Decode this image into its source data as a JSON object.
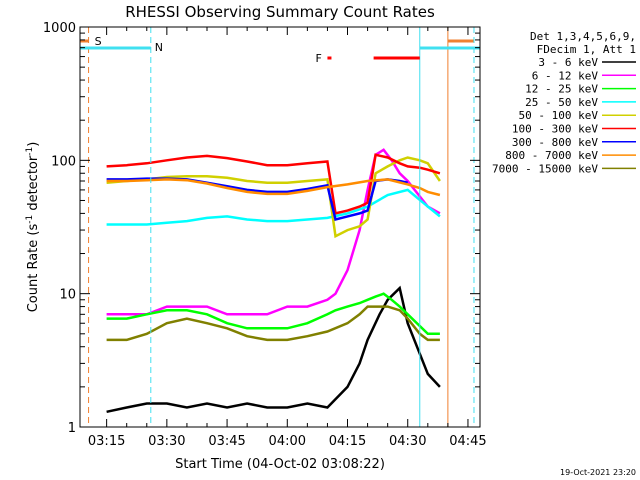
{
  "chart_data": {
    "type": "line",
    "title": "RHESSI Observing Summary Count Rates",
    "xlabel": "Start Time (04-Oct-02 03:08:22)",
    "ylabel": "Count Rate (s⁻¹ detector⁻¹)",
    "ylabel_main": "Count Rate (s",
    "ylabel_exp1": "-1",
    "ylabel_mid": " detector",
    "ylabel_exp2": "-1",
    "ylabel_end": ")",
    "xlim": [
      "03:08:22",
      "04:48:00"
    ],
    "ylim": [
      1,
      1000
    ],
    "yscale": "log",
    "x_ticks": [
      "03:15",
      "03:30",
      "03:45",
      "04:00",
      "04:15",
      "04:30",
      "04:45"
    ],
    "y_ticks": [
      "1",
      "10",
      "100",
      "1000"
    ],
    "legend": {
      "placement": "right",
      "header": [
        "Det 1,3,4,5,6,9,",
        "FDecim 1, Att 1"
      ]
    },
    "flags": [
      {
        "label": "S",
        "color": "#f08030"
      },
      {
        "label": "N",
        "color": "#40e0f0"
      },
      {
        "label": "F",
        "color": "#ff0000"
      }
    ],
    "series": [
      {
        "name": "3 - 6 keV",
        "color": "#000000",
        "x": [
          "03:15",
          "03:20",
          "03:25",
          "03:30",
          "03:35",
          "03:40",
          "03:45",
          "03:50",
          "03:55",
          "04:00",
          "04:05",
          "04:10",
          "04:15",
          "04:18",
          "04:20",
          "04:23",
          "04:25",
          "04:28",
          "04:30",
          "04:35",
          "04:38"
        ],
        "y": [
          1.3,
          1.4,
          1.5,
          1.5,
          1.4,
          1.5,
          1.4,
          1.5,
          1.4,
          1.4,
          1.5,
          1.4,
          2.0,
          3.0,
          4.5,
          7.0,
          9.0,
          11.0,
          6.0,
          2.5,
          2.0
        ]
      },
      {
        "name": "6 - 12 keV",
        "color": "#ff00ff",
        "x": [
          "03:15",
          "03:20",
          "03:25",
          "03:30",
          "03:35",
          "03:40",
          "03:45",
          "03:50",
          "03:55",
          "04:00",
          "04:05",
          "04:10",
          "04:12",
          "04:15",
          "04:18",
          "04:20",
          "04:22",
          "04:24",
          "04:26",
          "04:28",
          "04:30",
          "04:35",
          "04:38"
        ],
        "y": [
          7,
          7,
          7,
          8,
          8,
          8,
          7,
          7,
          7,
          8,
          8,
          9,
          10,
          15,
          30,
          60,
          110,
          120,
          100,
          80,
          70,
          45,
          40
        ]
      },
      {
        "name": "12 - 25 keV",
        "color": "#00ff00",
        "x": [
          "03:15",
          "03:20",
          "03:25",
          "03:30",
          "03:35",
          "03:40",
          "03:45",
          "03:50",
          "03:55",
          "04:00",
          "04:05",
          "04:10",
          "04:12",
          "04:15",
          "04:18",
          "04:20",
          "04:22",
          "04:24",
          "04:26",
          "04:28",
          "04:30",
          "04:35",
          "04:38"
        ],
        "y": [
          6.5,
          6.5,
          7,
          7.5,
          7.5,
          7,
          6,
          5.5,
          5.5,
          5.5,
          6,
          7,
          7.5,
          8,
          8.5,
          9,
          9.5,
          10,
          9,
          8,
          7,
          5,
          5
        ]
      },
      {
        "name": "25 - 50 keV",
        "color": "#00ffff",
        "x": [
          "03:15",
          "03:20",
          "03:25",
          "03:30",
          "03:35",
          "03:40",
          "03:45",
          "03:50",
          "03:55",
          "04:00",
          "04:05",
          "04:10",
          "04:15",
          "04:20",
          "04:25",
          "04:30",
          "04:35",
          "04:38"
        ],
        "y": [
          33,
          33,
          33,
          34,
          35,
          37,
          38,
          36,
          35,
          35,
          36,
          37,
          40,
          45,
          55,
          60,
          45,
          38
        ]
      },
      {
        "name": "50 - 100 keV",
        "color": "#d0d000",
        "x": [
          "03:15",
          "03:20",
          "03:25",
          "03:30",
          "03:35",
          "03:40",
          "03:45",
          "03:50",
          "03:55",
          "04:00",
          "04:05",
          "04:10",
          "04:12",
          "04:15",
          "04:18",
          "04:20",
          "04:22",
          "04:25",
          "04:28",
          "04:30",
          "04:33",
          "04:35",
          "04:38"
        ],
        "y": [
          68,
          70,
          72,
          75,
          76,
          76,
          74,
          70,
          68,
          68,
          70,
          72,
          27,
          30,
          32,
          36,
          80,
          90,
          100,
          105,
          100,
          95,
          70
        ]
      },
      {
        "name": "100 - 300 keV",
        "color": "#ff0000",
        "x": [
          "03:15",
          "03:20",
          "03:25",
          "03:30",
          "03:35",
          "03:40",
          "03:45",
          "03:50",
          "03:55",
          "04:00",
          "04:05",
          "04:10",
          "04:12",
          "04:15",
          "04:18",
          "04:20",
          "04:22",
          "04:25",
          "04:28",
          "04:30",
          "04:33",
          "04:35",
          "04:38"
        ],
        "y": [
          90,
          92,
          95,
          100,
          105,
          108,
          104,
          98,
          92,
          92,
          95,
          98,
          40,
          42,
          45,
          48,
          110,
          105,
          95,
          90,
          88,
          85,
          80
        ]
      },
      {
        "name": "300 - 800 keV",
        "color": "#0000ff",
        "x": [
          "03:15",
          "03:20",
          "03:25",
          "03:30",
          "03:35",
          "03:40",
          "03:45",
          "03:50",
          "03:55",
          "04:00",
          "04:05",
          "04:10",
          "04:12",
          "04:15",
          "04:18",
          "04:20",
          "04:22",
          "04:25",
          "04:28",
          "04:30"
        ],
        "y": [
          72,
          72,
          73,
          73,
          72,
          68,
          64,
          60,
          58,
          58,
          61,
          65,
          36,
          38,
          40,
          42,
          70,
          72,
          70,
          68
        ]
      },
      {
        "name": "800 - 7000 keV",
        "color": "#ff8c00",
        "x": [
          "03:15",
          "03:20",
          "03:25",
          "03:30",
          "03:35",
          "03:40",
          "03:45",
          "03:50",
          "03:55",
          "04:00",
          "04:05",
          "04:10",
          "04:15",
          "04:20",
          "04:25",
          "04:30",
          "04:33",
          "04:35",
          "04:38"
        ],
        "y": [
          70,
          70,
          71,
          72,
          71,
          67,
          62,
          58,
          56,
          56,
          59,
          63,
          66,
          70,
          72,
          66,
          62,
          58,
          55
        ]
      },
      {
        "name": "7000 - 15000 keV",
        "color": "#808000",
        "x": [
          "03:15",
          "03:20",
          "03:25",
          "03:30",
          "03:35",
          "03:40",
          "03:45",
          "03:50",
          "03:55",
          "04:00",
          "04:05",
          "04:10",
          "04:15",
          "04:18",
          "04:20",
          "04:25",
          "04:28",
          "04:30",
          "04:33",
          "04:35",
          "04:38"
        ],
        "y": [
          4.5,
          4.5,
          5,
          6,
          6.5,
          6,
          5.5,
          4.8,
          4.5,
          4.5,
          4.8,
          5.2,
          6,
          7,
          8,
          8,
          7.5,
          6.5,
          5,
          4.5,
          4.5
        ]
      }
    ]
  },
  "footer": {
    "timestamp": "19-Oct-2021 23:20"
  }
}
